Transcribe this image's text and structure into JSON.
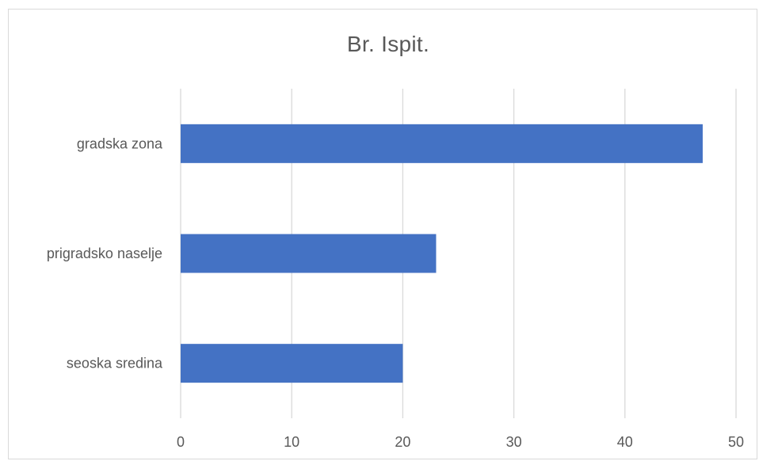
{
  "chart_data": {
    "type": "bar",
    "orientation": "horizontal",
    "title": "Br. Ispit.",
    "categories": [
      "gradska zona",
      "prigradsko naselje",
      "seoska sredina"
    ],
    "values": [
      47,
      23,
      20
    ],
    "xlim": [
      0,
      50
    ],
    "xticks": [
      "0",
      "10",
      "20",
      "30",
      "40",
      "50"
    ],
    "xtick_values": [
      0,
      10,
      20,
      30,
      40,
      50
    ],
    "xlabel": "",
    "ylabel": "",
    "grid": "vertical",
    "legend": "none",
    "colors": {
      "bar": "#4472C4",
      "grid": "#d9d9d9",
      "text": "#595959"
    }
  }
}
